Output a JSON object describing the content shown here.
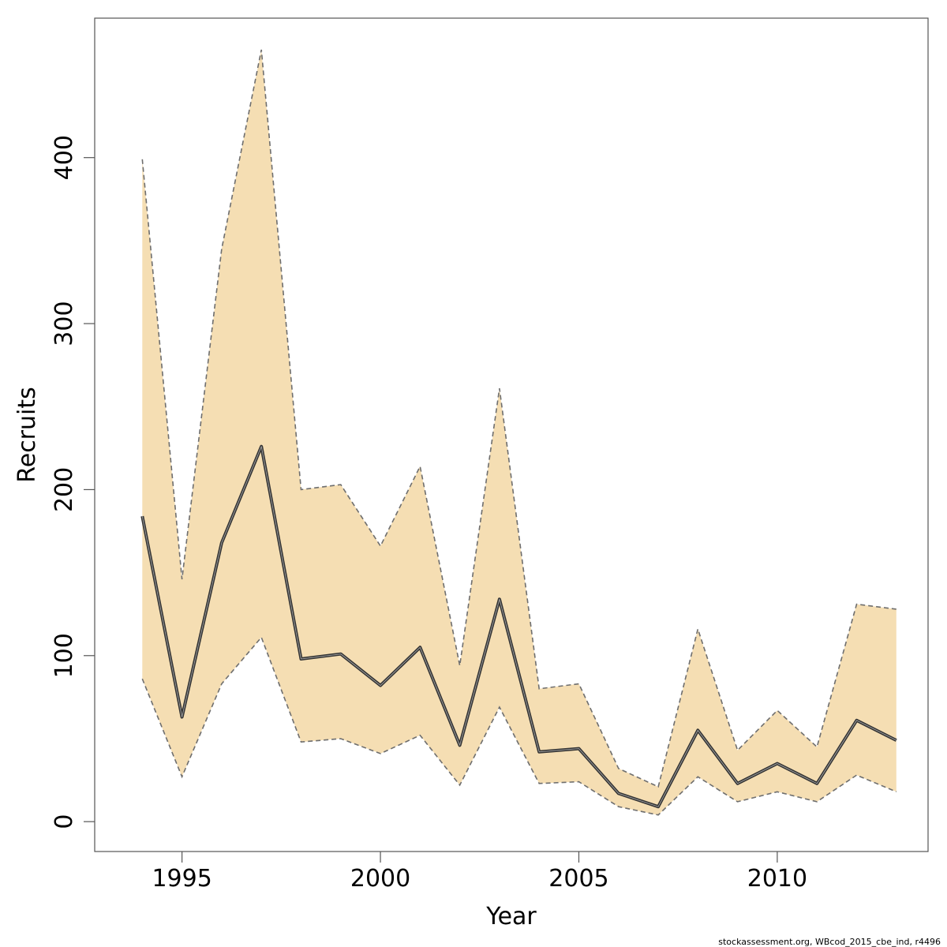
{
  "chart_data": {
    "type": "area",
    "title": "",
    "xlabel": "Year",
    "ylabel": "Recruits",
    "x": [
      1994,
      1995,
      1996,
      1997,
      1998,
      1999,
      2000,
      2001,
      2002,
      2003,
      2004,
      2005,
      2006,
      2007,
      2008,
      2009,
      2010,
      2011,
      2012,
      2013
    ],
    "series": [
      {
        "values": [
          184,
          63,
          168,
          226,
          98,
          101,
          82,
          105,
          46,
          134,
          42,
          44,
          17,
          9,
          55,
          23,
          35,
          23,
          61,
          49
        ]
      }
    ],
    "upper": [
      399,
      146,
      345,
      465,
      200,
      203,
      166,
      214,
      94,
      261,
      80,
      83,
      32,
      21,
      116,
      43,
      67,
      45,
      131,
      128
    ],
    "lower": [
      86,
      27,
      83,
      111,
      48,
      50,
      41,
      52,
      22,
      69,
      23,
      24,
      9,
      4,
      27,
      12,
      18,
      12,
      28,
      18
    ],
    "xlim": [
      1992.8,
      2013.8
    ],
    "ylim": [
      -18,
      484
    ],
    "x_ticks": [
      1995,
      2000,
      2005,
      2010
    ],
    "y_ticks": [
      0,
      100,
      200,
      300,
      400
    ],
    "grid": false,
    "colors": {
      "band_fill": "#f5deb3",
      "band_edge": "#6e6e6e",
      "line": "#333333",
      "frame": "#555555"
    }
  },
  "footer": "stockassessment.org, WBcod_2015_cbe_ind, r4496"
}
